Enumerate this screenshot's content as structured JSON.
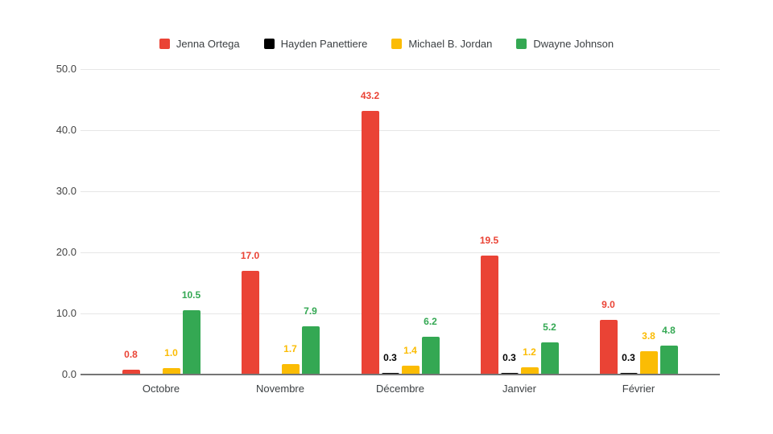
{
  "chart_data": {
    "type": "bar",
    "title": "",
    "categories": [
      "Octobre",
      "Novembre",
      "Décembre",
      "Janvier",
      "Février"
    ],
    "series": [
      {
        "name": "Jenna Ortega",
        "color": "#EA4335",
        "values": [
          0.8,
          17.0,
          43.2,
          19.5,
          9.0
        ]
      },
      {
        "name": "Hayden Panettiere",
        "color": "#000000",
        "values": [
          null,
          null,
          0.3,
          0.3,
          0.3
        ]
      },
      {
        "name": "Michael B. Jordan",
        "color": "#FBBC04",
        "values": [
          1.0,
          1.7,
          1.4,
          1.2,
          3.8
        ]
      },
      {
        "name": "Dwayne Johnson",
        "color": "#34A853",
        "values": [
          10.5,
          7.9,
          6.2,
          5.2,
          4.8
        ]
      }
    ],
    "y_axis": {
      "min": 0,
      "max": 50,
      "step": 10,
      "tick_labels": [
        "0.0",
        "10.0",
        "20.0",
        "30.0",
        "40.0",
        "50.0"
      ]
    },
    "x_axis_label": "",
    "y_axis_label": "",
    "grid": true,
    "legend_position": "top",
    "value_labels_shown": true,
    "value_label_format": "0.0",
    "colors": {
      "gridline": "#e6e6e6",
      "axis_baseline": "#757575",
      "tick_text": "#444444",
      "category_text": "#3c4043",
      "legend_text": "#3c4043",
      "background": "#ffffff"
    }
  }
}
